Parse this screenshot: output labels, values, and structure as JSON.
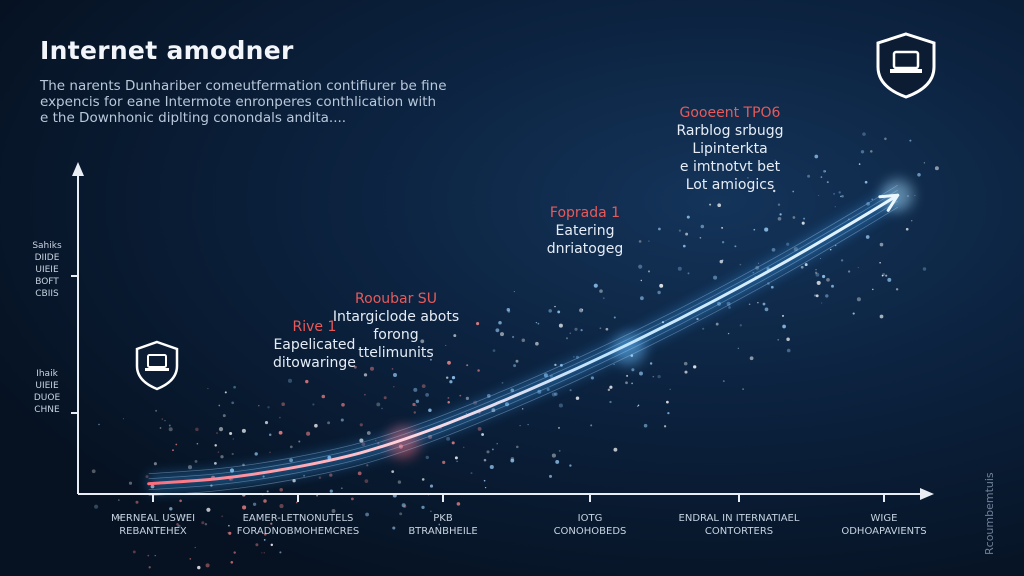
{
  "chart_data": {
    "type": "line",
    "title": "Internet amodner",
    "subtitle_lines": [
      "The narents Dunhariber comeutfermation contifiurer be fine",
      "expencis for eane Intermote enronperes conthlication with",
      "e the Downhonic diplting conondals andita...."
    ],
    "x_ticks": [
      {
        "lines": [
          "MERNEAL USWEI",
          "REBANTEHEX"
        ]
      },
      {
        "lines": [
          "EAMER-LETNONUTELS",
          "FORADNOBMOHEMCRES"
        ]
      },
      {
        "lines": [
          "PKB",
          "BTRANBHEILE"
        ]
      },
      {
        "lines": [
          "IOTG",
          "CONOHOBEDS"
        ]
      },
      {
        "lines": [
          "ENDRAL IN ITERNATIAEL",
          "CONTORTERS"
        ]
      },
      {
        "lines": [
          "WIGE",
          "ODHOAPAVIENTS"
        ]
      }
    ],
    "y_tick_groups": [
      {
        "lines": [
          "Sahiks",
          "DIIDE",
          "UIEIE",
          "BOFT",
          "CBIIS"
        ]
      },
      {
        "lines": [
          "Ihaik",
          "UIEIE",
          "DUOE",
          "CHNE"
        ]
      }
    ],
    "series": [
      {
        "x": [
          0,
          0.5,
          1,
          1.5,
          2,
          2.5,
          3,
          3.5,
          4,
          4.5,
          5,
          5.3
        ],
        "y": [
          0.4,
          0.6,
          1.0,
          1.6,
          2.5,
          3.6,
          4.8,
          6.1,
          7.5,
          9.0,
          10.6,
          11.6
        ]
      }
    ],
    "xlim": [
      -0.5,
      5.5
    ],
    "ylim": [
      0,
      12.5
    ],
    "annotations": [
      {
        "x": 1.2,
        "y": 1.6,
        "head": "Rive 1",
        "lines": [
          "Eapelicated",
          "ditowaringe"
        ]
      },
      {
        "x": 2.1,
        "y": 2.6,
        "head": "Rooubar SU",
        "lines": [
          "Intargiclode abots",
          "forong",
          "ttelimunits"
        ]
      },
      {
        "x": 3.3,
        "y": 5.5,
        "head": "Foprada 1",
        "lines": [
          "Eatering",
          "dnriatogeg"
        ]
      },
      {
        "x": 4.4,
        "y": 8.6,
        "head": "Gooeent TPO6",
        "lines": [
          "Rarblog srbugg",
          "Lipinterkta",
          "e imtnotvt bet",
          "Lot amiogics"
        ]
      }
    ],
    "grid": false,
    "legend": "none",
    "colors": {
      "line": "#ffffff",
      "glow": "#3aa8ff",
      "accent": "#e85a5a",
      "axis": "#e9eef5"
    },
    "icons": [
      "shield-laptop-icon",
      "shield-laptop-icon"
    ],
    "watermark": "Rcoumbemtuis"
  }
}
